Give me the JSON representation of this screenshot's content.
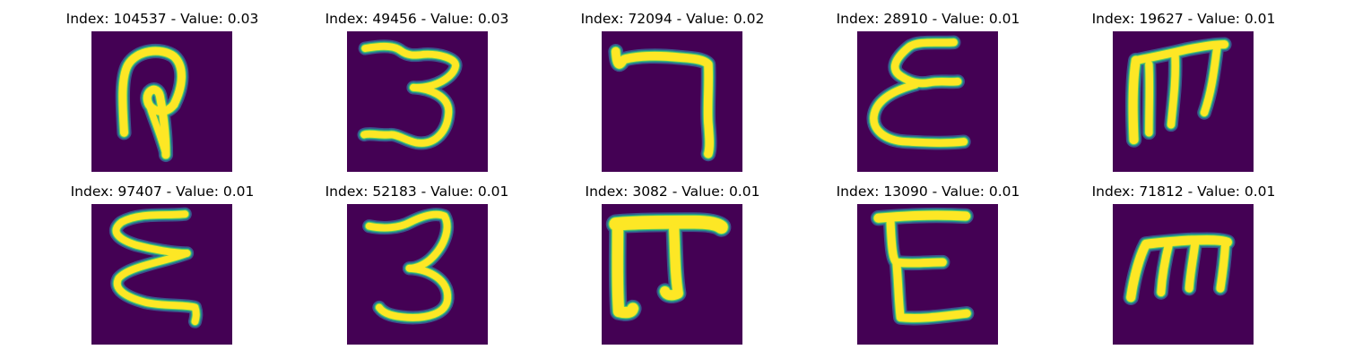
{
  "figure": {
    "colormap": "viridis",
    "background_color": "#ffffff",
    "image_bg_color": "#440154",
    "stroke_color": "#fde725",
    "panels": [
      {
        "title": "Index: 104537 - Value: 0.03",
        "glyph": "ꝗ-like loop with descender",
        "strokes": [
          "M6.5,20.2 C6.2,14.8 5.8,9.5 7.2,6.8 C9.0,3.6 14.0,3.2 16.4,5.0 C18.6,7.0 18.2,11.0 16.4,14.6",
          "M16.4,14.6 C14.6,17.0 11.6,15.8 11.2,14.0 C10.6,11.8 13.0,10.6 13.6,12.8 C14.2,15.8 14.8,20.5 14.8,24.6",
          "M11.6,15.0 C12.4,17.6 13.6,20.2 14.8,24.6"
        ],
        "widths": [
          1.6,
          1.6,
          1.3
        ]
      },
      {
        "title": "Index: 49456 - Value: 0.03",
        "glyph": "3",
        "strokes": [
          "M3.6,3.4 C6.0,3.0 9.0,2.6 10.6,3.8 C12.2,5.0 13.6,4.8 15.2,4.6 C18.2,4.4 21.6,5.4 21.6,6.8 C21.4,9.0 17.6,11.4 13.2,11.2",
          "M13.2,11.2 C16.2,11.4 20.4,12.8 20.2,16.2 C20.0,19.8 17.6,22.8 13.8,22.2 C11.8,21.8 9.8,20.4 8.6,20.6 C6.6,20.8 4.6,20.2 3.4,20.6"
        ],
        "widths": [
          1.4,
          1.4
        ]
      },
      {
        "title": "Index: 72094 - Value: 0.02",
        "glyph": "7",
        "strokes": [
          "M2.8,4.0 C3.0,7.2 3.6,7.0 4.4,5.6 C7.2,4.8 11.6,4.8 15.4,5.2 C18.2,5.4 20.4,5.6 21.2,6.6 C21.4,10.4 21.0,14.8 21.2,18.2 C21.4,20.8 21.6,23.0 21.2,24.4"
        ],
        "widths": [
          1.7
        ]
      },
      {
        "title": "Index: 28910 - Value: 0.01",
        "glyph": "ε",
        "strokes": [
          "M19.2,2.2 C16.0,2.4 11.8,1.8 10.2,3.2 C7.6,5.4 6.4,7.6 8.8,9.0 C10.6,10.2 12.4,10.6 14.4,10.2 C16.4,9.8 18.4,10.2 20.0,10.0",
          "M11.6,10.6 C8.6,11.4 4.2,13.0 3.4,16.4 C2.6,19.6 5.6,21.8 9.8,22.0 C13.6,22.2 17.8,22.4 21.2,22.0"
        ],
        "widths": [
          1.5,
          1.5
        ]
      },
      {
        "title": "Index: 19627 - Value: 0.01",
        "glyph": "m-like",
        "strokes": [
          "M4.2,21.6 C4.0,17.2 3.8,10.8 4.6,5.8",
          "M4.6,5.8 C8.6,5.0 11.6,4.4 14.8,3.6 C17.8,3.0 20.8,2.6 22.2,2.6",
          "M7.2,6.6 C7.4,10.8 7.2,15.2 7.2,20.2",
          "M12.4,5.0 C12.6,9.8 12.0,14.2 11.6,18.6",
          "M20.8,2.8 C20.2,7.2 19.8,11.6 18.2,16.2"
        ],
        "widths": [
          1.8,
          1.6,
          1.5,
          1.5,
          1.5
        ]
      },
      {
        "title": "Index: 97407 - Value: 0.01",
        "glyph": "ε-like zigzag",
        "strokes": [
          "M18.6,2.0 C14.6,2.4 9.6,1.6 6.0,3.6 C3.4,5.6 5.8,7.2 9.0,8.2 C12.0,9.0 16.2,9.8 19.0,9.8",
          "M19.0,9.8 C14.2,11.6 7.4,12.4 5.4,14.8 C4.2,17.0 7.0,18.6 10.8,19.6 C14.4,20.4 18.6,20.0 20.6,20.6 C21.0,21.8 20.8,22.6 20.6,23.4"
        ],
        "widths": [
          1.4,
          1.4
        ]
      },
      {
        "title": "Index: 52183 - Value: 0.01",
        "glyph": "3",
        "strokes": [
          "M4.4,4.4 C7.2,5.0 10.4,4.8 12.6,3.6 C15.0,2.4 17.6,1.6 19.4,2.4 C20.6,4.6 19.6,8.2 16.6,11.0 C15.0,12.4 13.4,12.8 12.4,12.8",
          "M12.4,12.8 C16.2,13.0 20.2,15.0 20.0,18.8 C19.8,22.0 15.6,22.8 12.0,22.6 C9.4,22.4 7.4,22.0 6.4,20.6"
        ],
        "widths": [
          1.4,
          1.4
        ]
      },
      {
        "title": "Index: 3082 - Value: 0.01",
        "glyph": "π",
        "strokes": [
          "M2.8,4.0 C7.2,3.6 13.2,3.6 18.4,3.6 C20.6,3.6 22.8,3.8 23.8,4.6",
          "M3.2,4.4 C3.2,10.0 3.0,16.0 3.4,21.4 C5.0,21.8 6.0,21.6 6.2,20.8",
          "M14.4,5.0 C14.6,9.6 14.6,14.0 15.2,17.8 C14.0,18.4 12.8,18.2 12.6,17.4"
        ],
        "widths": [
          2.6,
          2.2,
          2.0
        ]
      },
      {
        "title": "Index: 13090 - Value: 0.01",
        "glyph": "E",
        "strokes": [
          "M4.2,2.8 C9.0,2.4 14.8,2.0 21.6,2.4",
          "M6.6,3.2 C6.8,8.0 7.0,11.0 7.8,11.6 C10.6,12.0 14.2,11.6 17.0,11.6",
          "M7.8,11.6 C8.2,15.6 8.2,19.4 8.6,22.6 C12.6,23.0 16.6,22.4 21.8,21.8"
        ],
        "widths": [
          1.8,
          1.6,
          1.6
        ]
      },
      {
        "title": "Index: 71812 - Value: 0.01",
        "glyph": "m",
        "strokes": [
          "M3.6,18.6 C4.2,14.4 5.4,10.2 6.6,8.0 C9.4,7.6 12.6,7.4 15.6,7.2 C18.2,7.2 21.2,7.0 22.8,7.6",
          "M11.2,7.8 C10.4,11.0 9.8,14.6 9.6,17.6",
          "M16.4,7.6 C16.0,10.8 15.4,13.8 15.2,16.8",
          "M22.4,8.0 C22.2,11.0 21.8,14.2 21.4,16.8"
        ],
        "widths": [
          1.8,
          1.6,
          1.6,
          1.6
        ]
      }
    ]
  }
}
